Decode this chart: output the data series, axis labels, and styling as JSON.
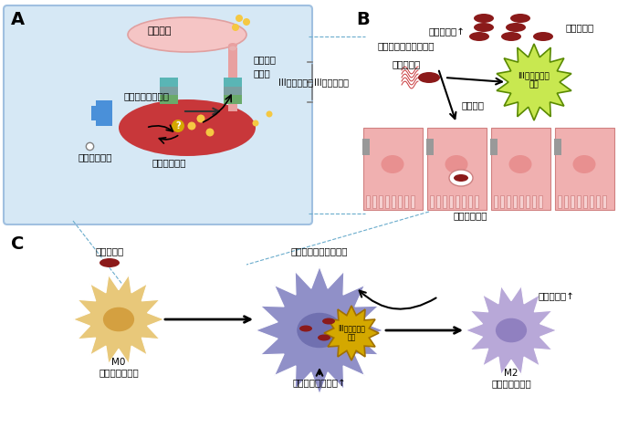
{
  "panel_A_label": "A",
  "panel_B_label": "B",
  "panel_C_label": "C",
  "text_shukusaibo": "宿主細脹",
  "text_needle": "ニードル",
  "text_kibute": "基部体",
  "text_T3SS": "III型分泌装置",
  "text_transporter": "トランスポーター",
  "text_spermidine": "スペルミジン",
  "text_effector": "エフェクター",
  "text_polyamine": "ポリアミン↑",
  "text_spermidine_uptake": "スペルミジン取り込み",
  "text_salmonella_B": "サルモネラ",
  "text_cell_invasion": "細脹侵入",
  "text_intestinal_colonization": "腸管内定着",
  "text_T3SS_construct": "III型分泌装置\n構築",
  "text_intestinal_epithelial": "腸管上皮細脹",
  "text_salmonella_C": "サルモネラ",
  "text_M0": "M0\nマクロファージ",
  "text_arginase": "アルギナーゼ活性↑",
  "text_M2": "M2\nマクロファージ",
  "text_polyamine_C": "ポリアミン↑",
  "text_spermidine_uptake_C": "スペルミジン取り込み",
  "bg_color": "#ffffff",
  "panel_A_box_color": "#d6e8f5",
  "bacteria_color": "#c8373a",
  "bacteria_dark": "#8b1a1a",
  "host_cell_color": "#f5c5c5",
  "needle_color": "#e8a0a0",
  "base_color_teal": "#5ab5b5",
  "base_color_green": "#6aaa6a",
  "blue_transporter": "#4a90d9",
  "yellow_color": "#f5c842",
  "gold_question": "#d4a800",
  "epithelial_color": "#f0b0b0",
  "macrophage_M0_color": "#e8c87a",
  "macrophage_infected_color": "#9090c8",
  "macrophage_M2_color": "#b8a8d8",
  "spiky_fill": "#c8e850",
  "spiky_stroke": "#5a8a00",
  "dark_red_pill": "#8b1a1a",
  "arrow_color": "#333333",
  "dashed_line_color": "#6aaccc"
}
